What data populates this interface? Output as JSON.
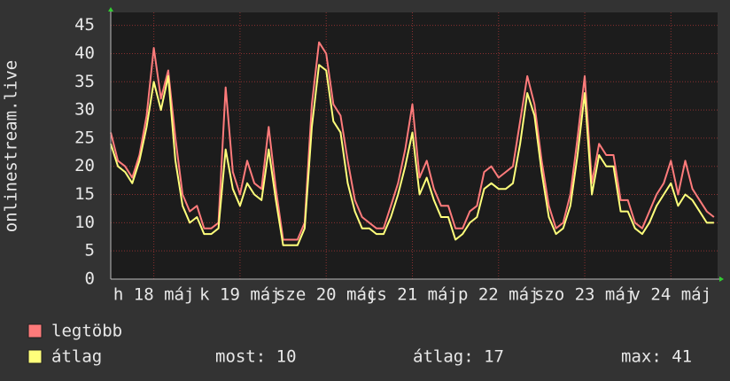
{
  "chart_data": {
    "type": "line",
    "ylabel": "onlinestream.live",
    "x": [
      0,
      2,
      4,
      6,
      8,
      10,
      12,
      14,
      16,
      18,
      20,
      22,
      24,
      26,
      28,
      30,
      32,
      34,
      36,
      38,
      40,
      42,
      44,
      46,
      48,
      50,
      52,
      54,
      56,
      58,
      60,
      62,
      64,
      66,
      68,
      70,
      72,
      74,
      76,
      78,
      80,
      82,
      84,
      86,
      88,
      90,
      92,
      94,
      96,
      98,
      100,
      102,
      104,
      106,
      108,
      110,
      112,
      114,
      116,
      118,
      120,
      122,
      124,
      126,
      128,
      130,
      132,
      134,
      136,
      138,
      140,
      142,
      144,
      146,
      148,
      150,
      152,
      154,
      156,
      158,
      160,
      162,
      164,
      166,
      168
    ],
    "series": [
      {
        "name": "legtöbb",
        "color": "#ff7b7b",
        "values": [
          26,
          21,
          20,
          18,
          22,
          29,
          41,
          32,
          37,
          25,
          15,
          12,
          13,
          9,
          9,
          10,
          34,
          19,
          15,
          21,
          17,
          16,
          27,
          16,
          7,
          7,
          7,
          10,
          31,
          42,
          40,
          31,
          29,
          21,
          14,
          11,
          10,
          9,
          9,
          13,
          17,
          23,
          31,
          18,
          21,
          16,
          13,
          13,
          9,
          9,
          12,
          13,
          19,
          20,
          18,
          19,
          20,
          28,
          36,
          31,
          21,
          13,
          9,
          10,
          15,
          25,
          36,
          17,
          24,
          22,
          22,
          14,
          14,
          10,
          9,
          12,
          15,
          17,
          21,
          15,
          21,
          16,
          14,
          12,
          11
        ]
      },
      {
        "name": "átlag",
        "color": "#ffff7b",
        "values": [
          24,
          20,
          19,
          17,
          21,
          27,
          35,
          30,
          36,
          21,
          13,
          10,
          11,
          8,
          8,
          9,
          23,
          16,
          13,
          17,
          15,
          14,
          23,
          14,
          6,
          6,
          6,
          9,
          27,
          38,
          37,
          28,
          26,
          17,
          12,
          9,
          9,
          8,
          8,
          11,
          15,
          20,
          26,
          15,
          18,
          14,
          11,
          11,
          7,
          8,
          10,
          11,
          16,
          17,
          16,
          16,
          17,
          24,
          33,
          29,
          19,
          11,
          8,
          9,
          13,
          22,
          33,
          15,
          22,
          20,
          20,
          12,
          12,
          9,
          8,
          10,
          13,
          15,
          17,
          13,
          15,
          14,
          12,
          10,
          10
        ]
      }
    ],
    "xlim": [
      0,
      169
    ],
    "xticks": [
      {
        "value": 12,
        "label": "h 18 máj"
      },
      {
        "value": 36,
        "label": "k 19 máj"
      },
      {
        "value": 60,
        "label": "sze 20 máj"
      },
      {
        "value": 84,
        "label": "cs 21 máj"
      },
      {
        "value": 108,
        "label": "p 22 máj"
      },
      {
        "value": 132,
        "label": "szo 23 máj"
      },
      {
        "value": 156,
        "label": "v 24 máj"
      }
    ],
    "ylim": [
      0,
      47.3
    ],
    "yticks": [
      0,
      5,
      10,
      15,
      20,
      25,
      30,
      35,
      40,
      45
    ],
    "grid": true,
    "legend_stats": [
      "most: 10",
      "átlag: 17",
      "max: 41"
    ]
  }
}
